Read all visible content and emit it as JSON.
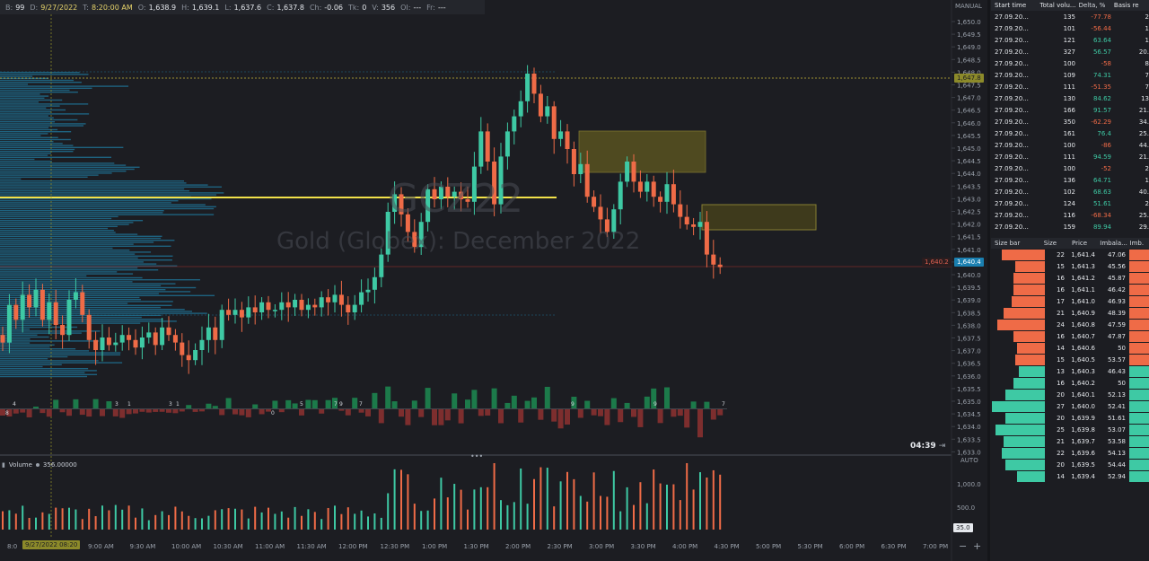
{
  "topbar": [
    {
      "k": "B:",
      "v": "99"
    },
    {
      "k": "D:",
      "v": "9/27/2022"
    },
    {
      "k": "T:",
      "v": "8:20:00 AM"
    },
    {
      "k": "O:",
      "v": "1,638.9"
    },
    {
      "k": "H:",
      "v": "1,639.1"
    },
    {
      "k": "L:",
      "v": "1,637.6"
    },
    {
      "k": "C:",
      "v": "1,637.8"
    },
    {
      "k": "Ch:",
      "v": "-0.06"
    },
    {
      "k": "Tk:",
      "v": "0"
    },
    {
      "k": "V:",
      "v": "356"
    },
    {
      "k": "OI:",
      "v": "---"
    },
    {
      "k": "Fr:",
      "v": "---"
    }
  ],
  "watermark": {
    "symbol": "GCZ22",
    "name": "Gold (Globex): December 2022"
  },
  "scale_mode": "MANUAL",
  "auto_label": "AUTO",
  "timer": "04:39",
  "volume_indicator": {
    "name": "Volume",
    "value": "356.00000"
  },
  "price_labels": {
    "high_marker": "1,647.8",
    "bid": "1,640.2",
    "last": "1,640.4"
  },
  "price_axis": [
    "1,650.0",
    "1,649.5",
    "1,649.0",
    "1,648.5",
    "1,648.0",
    "1,647.5",
    "1,647.0",
    "1,646.5",
    "1,646.0",
    "1,645.5",
    "1,645.0",
    "1,644.5",
    "1,644.0",
    "1,643.5",
    "1,643.0",
    "1,642.5",
    "1,642.0",
    "1,641.5",
    "1,641.0",
    "1,640.5",
    "1,640.0",
    "1,639.5",
    "1,639.0",
    "1,638.5",
    "1,638.0",
    "1,637.5",
    "1,637.0",
    "1,636.5",
    "1,636.0",
    "1,635.5",
    "1,635.0",
    "1,634.5",
    "1,634.0",
    "1,633.5",
    "1,633.0"
  ],
  "volume_axis": [
    "1,000.0",
    "500.0"
  ],
  "volume_axis_box": "35.0",
  "time_axis": [
    "8:0",
    "9:00 AM",
    "9:30 AM",
    "10:00 AM",
    "10:30 AM",
    "11:00 AM",
    "11:30 AM",
    "12:00 PM",
    "12:30 PM",
    "1:00 PM",
    "1:30 PM",
    "2:00 PM",
    "2:30 PM",
    "3:00 PM",
    "3:30 PM",
    "4:00 PM",
    "4:30 PM",
    "5:00 PM",
    "5:30 PM",
    "6:00 PM",
    "6:30 PM",
    "7:00 PM"
  ],
  "crosshair_time": "9/27/2022 08:20",
  "zoom_controls": {
    "minus": "−",
    "plus": "+"
  },
  "colors": {
    "up": "#3ec9a4",
    "down": "#ef6b47",
    "vol_up": "#1c7a4a",
    "vol_down": "#7d2e2e",
    "profile": "#1e6f8f",
    "zone": "#c9b83a",
    "poc": "#f2e24a",
    "accent": "#2596be"
  },
  "delta_numbers_top": [
    "4",
    "3",
    "1",
    "3",
    "1",
    "5",
    "7",
    "9",
    "7",
    "9",
    "9",
    "7"
  ],
  "delta_numbers_bottom": [
    "8",
    "0"
  ],
  "clusters": {
    "headers": [
      "Start time",
      "Total volu...",
      "Delta, %",
      "Basis re"
    ],
    "rows": [
      [
        "27.09.20...",
        "135",
        "-77.78",
        "2"
      ],
      [
        "27.09.20...",
        "101",
        "-56.44",
        "1"
      ],
      [
        "27.09.20...",
        "121",
        "63.64",
        "1"
      ],
      [
        "27.09.20...",
        "327",
        "56.57",
        "20."
      ],
      [
        "27.09.20...",
        "100",
        "-58",
        "8"
      ],
      [
        "27.09.20...",
        "109",
        "74.31",
        "7"
      ],
      [
        "27.09.20...",
        "111",
        "-51.35",
        "7"
      ],
      [
        "27.09.20...",
        "130",
        "84.62",
        "13"
      ],
      [
        "27.09.20...",
        "166",
        "91.57",
        "21."
      ],
      [
        "27.09.20...",
        "350",
        "-62.29",
        "34."
      ],
      [
        "27.09.20...",
        "161",
        "76.4",
        "25."
      ],
      [
        "27.09.20...",
        "100",
        "-86",
        "44."
      ],
      [
        "27.09.20...",
        "111",
        "94.59",
        "21."
      ],
      [
        "27.09.20...",
        "100",
        "-52",
        "2"
      ],
      [
        "27.09.20...",
        "136",
        "64.71",
        "1"
      ],
      [
        "27.09.20...",
        "102",
        "68.63",
        "40."
      ],
      [
        "27.09.20...",
        "124",
        "51.61",
        "2"
      ],
      [
        "27.09.20...",
        "116",
        "-68.34",
        "25."
      ],
      [
        "27.09.20...",
        "159",
        "89.94",
        "29."
      ]
    ]
  },
  "dom": {
    "headers": [
      "Size bar",
      "Size",
      "Price",
      "Imbala...",
      "Imb. "
    ],
    "rows": [
      {
        "size": "22",
        "price": "1,641.4",
        "imb": "47.06",
        "side": "ask"
      },
      {
        "size": "15",
        "price": "1,641.3",
        "imb": "45.56",
        "side": "ask"
      },
      {
        "size": "16",
        "price": "1,641.2",
        "imb": "45.87",
        "side": "ask"
      },
      {
        "size": "16",
        "price": "1,641.1",
        "imb": "46.42",
        "side": "ask"
      },
      {
        "size": "17",
        "price": "1,641.0",
        "imb": "46.93",
        "side": "ask"
      },
      {
        "size": "21",
        "price": "1,640.9",
        "imb": "48.39",
        "side": "ask"
      },
      {
        "size": "24",
        "price": "1,640.8",
        "imb": "47.59",
        "side": "ask"
      },
      {
        "size": "16",
        "price": "1,640.7",
        "imb": "47.87",
        "side": "ask"
      },
      {
        "size": "14",
        "price": "1,640.6",
        "imb": "50",
        "side": "ask"
      },
      {
        "size": "15",
        "price": "1,640.5",
        "imb": "53.57",
        "side": "ask"
      },
      {
        "size": "13",
        "price": "1,640.3",
        "imb": "46.43",
        "side": "bid"
      },
      {
        "size": "16",
        "price": "1,640.2",
        "imb": "50",
        "side": "bid"
      },
      {
        "size": "20",
        "price": "1,640.1",
        "imb": "52.13",
        "side": "bid"
      },
      {
        "size": "27",
        "price": "1,640.0",
        "imb": "52.41",
        "side": "bid"
      },
      {
        "size": "20",
        "price": "1,639.9",
        "imb": "51.61",
        "side": "bid"
      },
      {
        "size": "25",
        "price": "1,639.8",
        "imb": "53.07",
        "side": "bid"
      },
      {
        "size": "21",
        "price": "1,639.7",
        "imb": "53.58",
        "side": "bid"
      },
      {
        "size": "22",
        "price": "1,639.6",
        "imb": "54.13",
        "side": "bid"
      },
      {
        "size": "20",
        "price": "1,639.5",
        "imb": "54.44",
        "side": "bid"
      },
      {
        "size": "14",
        "price": "1,639.4",
        "imb": "52.94",
        "side": "bid"
      }
    ]
  }
}
